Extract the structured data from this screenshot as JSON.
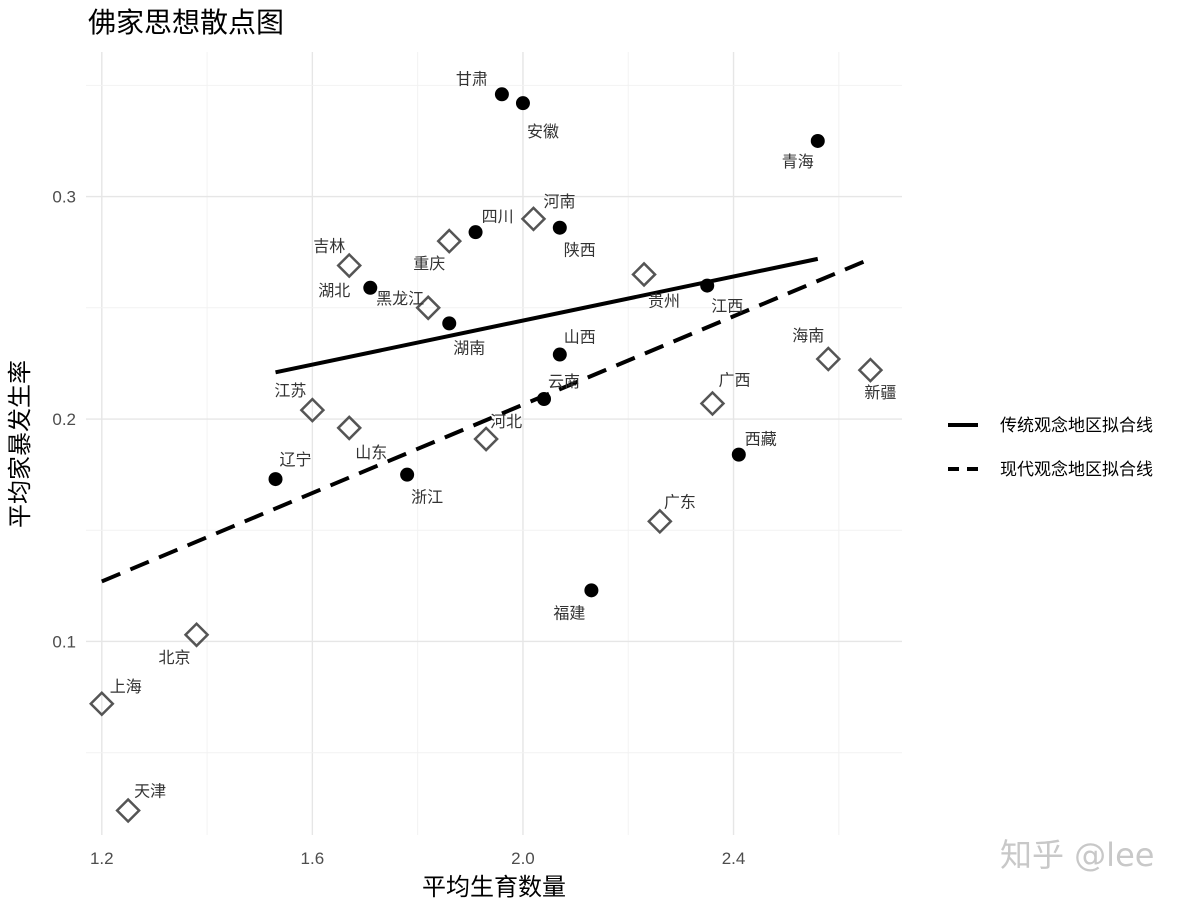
{
  "watermark": "知乎 @lee",
  "chart_data": {
    "type": "scatter",
    "title": "佛家思想散点图",
    "xlabel": "平均生育数量",
    "ylabel": "平均家暴发生率",
    "xlim": [
      1.17,
      2.72
    ],
    "ylim": [
      0.013,
      0.365
    ],
    "x_ticks": [
      1.2,
      1.6,
      2.0,
      2.4
    ],
    "x_tick_labels": [
      "1.2",
      "1.6",
      "2.0",
      "2.4"
    ],
    "y_ticks": [
      0.1,
      0.2,
      0.3
    ],
    "y_tick_labels": [
      "0.1",
      "0.2",
      "0.3"
    ],
    "grid": true,
    "legend_position": "right",
    "series": [
      {
        "name": "传统观念地区拟合线",
        "marker": "filled-circle",
        "color": "#000000",
        "points": [
          {
            "label": "甘肃",
            "x": 1.96,
            "y": 0.346
          },
          {
            "label": "安徽",
            "x": 2.0,
            "y": 0.342
          },
          {
            "label": "青海",
            "x": 2.56,
            "y": 0.325
          },
          {
            "label": "四川",
            "x": 1.91,
            "y": 0.284
          },
          {
            "label": "陕西",
            "x": 2.07,
            "y": 0.286
          },
          {
            "label": "湖北",
            "x": 1.71,
            "y": 0.259
          },
          {
            "label": "江西",
            "x": 2.35,
            "y": 0.26
          },
          {
            "label": "湖南",
            "x": 1.86,
            "y": 0.243
          },
          {
            "label": "山西",
            "x": 2.07,
            "y": 0.229
          },
          {
            "label": "云南",
            "x": 2.04,
            "y": 0.209
          },
          {
            "label": "西藏",
            "x": 2.41,
            "y": 0.184
          },
          {
            "label": "辽宁",
            "x": 1.53,
            "y": 0.173
          },
          {
            "label": "浙江",
            "x": 1.78,
            "y": 0.175
          },
          {
            "label": "福建",
            "x": 2.13,
            "y": 0.123
          }
        ],
        "fit_line": {
          "x": [
            1.53,
            2.56
          ],
          "y": [
            0.221,
            0.272
          ],
          "style": "solid"
        }
      },
      {
        "name": "现代观念地区拟合线",
        "marker": "open-diamond",
        "color": "#555555",
        "points": [
          {
            "label": "河南",
            "x": 2.02,
            "y": 0.29
          },
          {
            "label": "重庆",
            "x": 1.86,
            "y": 0.28
          },
          {
            "label": "吉林",
            "x": 1.67,
            "y": 0.269
          },
          {
            "label": "贵州",
            "x": 2.23,
            "y": 0.265
          },
          {
            "label": "黑龙江",
            "x": 1.82,
            "y": 0.25
          },
          {
            "label": "海南",
            "x": 2.58,
            "y": 0.227
          },
          {
            "label": "新疆",
            "x": 2.66,
            "y": 0.222
          },
          {
            "label": "广西",
            "x": 2.36,
            "y": 0.207
          },
          {
            "label": "江苏",
            "x": 1.6,
            "y": 0.204
          },
          {
            "label": "山东",
            "x": 1.67,
            "y": 0.196
          },
          {
            "label": "河北",
            "x": 1.93,
            "y": 0.191
          },
          {
            "label": "广东",
            "x": 2.26,
            "y": 0.154
          },
          {
            "label": "北京",
            "x": 1.38,
            "y": 0.103
          },
          {
            "label": "上海",
            "x": 1.2,
            "y": 0.072
          },
          {
            "label": "天津",
            "x": 1.25,
            "y": 0.024
          }
        ],
        "fit_line": {
          "x": [
            1.2,
            2.66
          ],
          "y": [
            0.127,
            0.272
          ],
          "style": "dashed"
        }
      }
    ]
  }
}
